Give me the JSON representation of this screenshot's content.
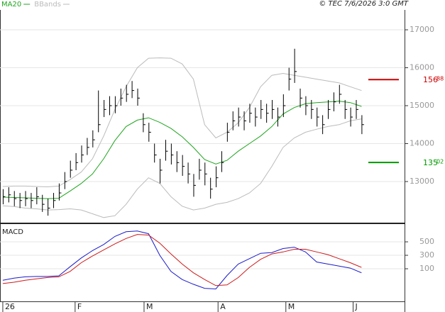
{
  "chart_data": [
    {
      "type": "ohlc",
      "source": "© TEC 7/6/2026 3:0 GMT",
      "grid": true,
      "color": "#000000",
      "xlim": [
        -0.5,
        71.8
      ],
      "ylim": [
        11935,
        17505
      ],
      "xticks": [
        {
          "value": 0,
          "label": "26"
        },
        {
          "value": 12.9,
          "label": "F"
        },
        {
          "value": 25.2,
          "label": "M"
        },
        {
          "value": 38.4,
          "label": "A"
        },
        {
          "value": 50.5,
          "label": "M"
        },
        {
          "value": 62.5,
          "label": "J"
        }
      ],
      "yticks": [
        13000,
        14000,
        15000,
        16000,
        17000
      ],
      "x": [
        0,
        1,
        2,
        3,
        4,
        5,
        6,
        7,
        8,
        9,
        10,
        11,
        12,
        13,
        14,
        15,
        16,
        17,
        18,
        19,
        20,
        21,
        22,
        23,
        24,
        25,
        26,
        27,
        28,
        29,
        30,
        31,
        32,
        33,
        34,
        35,
        36,
        37,
        38,
        39,
        40,
        41,
        42,
        43,
        44,
        45,
        46,
        47,
        48,
        49,
        50,
        51,
        52,
        53,
        54,
        55,
        56,
        57,
        58,
        59,
        60,
        61,
        62,
        63,
        64
      ],
      "high": [
        12800,
        12850,
        12750,
        12700,
        12750,
        12700,
        12850,
        12650,
        12550,
        12700,
        12950,
        13250,
        13550,
        13750,
        13950,
        14150,
        14350,
        15400,
        15150,
        15250,
        15250,
        15450,
        15550,
        15650,
        15450,
        14800,
        14550,
        14000,
        13600,
        14100,
        14000,
        13800,
        13700,
        13500,
        13200,
        13600,
        13500,
        13100,
        13400,
        13800,
        14550,
        14850,
        14950,
        14850,
        15050,
        14950,
        15150,
        15050,
        15150,
        14950,
        15300,
        16000,
        16500,
        15450,
        15250,
        15150,
        14950,
        14750,
        15150,
        15350,
        15550,
        15150,
        14950,
        15150,
        14750
      ],
      "low": [
        12400,
        12450,
        12350,
        12300,
        12350,
        12300,
        12400,
        12200,
        12100,
        12300,
        12500,
        12800,
        13100,
        13300,
        13500,
        13700,
        13900,
        14300,
        14700,
        14750,
        14800,
        15000,
        15100,
        15200,
        15000,
        14300,
        14050,
        13500,
        12950,
        13550,
        13450,
        13250,
        13150,
        12950,
        12600,
        13050,
        12900,
        12550,
        12850,
        13250,
        14050,
        14350,
        14450,
        14350,
        14550,
        14450,
        14650,
        14550,
        14650,
        14450,
        14700,
        15400,
        15600,
        14950,
        14750,
        14650,
        14450,
        14250,
        14650,
        14850,
        15050,
        14650,
        14450,
        14650,
        14250
      ],
      "close": [
        12600,
        12650,
        12550,
        12500,
        12550,
        12500,
        12600,
        12400,
        12300,
        12500,
        12700,
        13000,
        13300,
        13500,
        13700,
        13900,
        14100,
        14500,
        14900,
        15000,
        15000,
        15200,
        15300,
        15400,
        15200,
        14500,
        14300,
        13700,
        13300,
        13800,
        13700,
        13500,
        13400,
        13200,
        12900,
        13300,
        13200,
        12800,
        13100,
        13500,
        14300,
        14600,
        14700,
        14600,
        14800,
        14700,
        14900,
        14800,
        14900,
        14700,
        15000,
        15700,
        15900,
        15200,
        15000,
        14900,
        14700,
        14500,
        14900,
        15100,
        15300,
        14900,
        14700,
        14900,
        14500
      ],
      "series": [
        {
          "name": "MA20",
          "color": "#1fa51f",
          "x": [
            0,
            2,
            4,
            6,
            8,
            10,
            12,
            14,
            16,
            18,
            20,
            22,
            24,
            26,
            28,
            30,
            32,
            34,
            36,
            38,
            40,
            42,
            44,
            46,
            48,
            50,
            52,
            54,
            56,
            58,
            60,
            62,
            64
          ],
          "values": [
            12590,
            12580,
            12570,
            12560,
            12550,
            12560,
            12750,
            12950,
            13200,
            13600,
            14080,
            14450,
            14620,
            14680,
            14560,
            14400,
            14180,
            13900,
            13580,
            13460,
            13560,
            13800,
            14000,
            14200,
            14450,
            14780,
            14950,
            15050,
            15080,
            15100,
            15120,
            15080,
            14980
          ]
        },
        {
          "name": "BBands",
          "color": "#bbbbbb",
          "x": [
            0,
            2,
            4,
            6,
            8,
            10,
            12,
            14,
            16,
            18,
            20,
            22,
            24,
            26,
            28,
            30,
            32,
            34,
            36,
            38,
            40,
            42,
            44,
            46,
            48,
            50,
            52,
            54,
            56,
            58,
            60,
            62,
            64
          ],
          "upper": [
            12870,
            12880,
            12880,
            12870,
            12860,
            12880,
            13050,
            13250,
            13600,
            14200,
            14900,
            15500,
            16000,
            16250,
            16260,
            16250,
            16100,
            15700,
            14500,
            14150,
            14300,
            14550,
            14950,
            15500,
            15800,
            15850,
            15800,
            15750,
            15700,
            15650,
            15600,
            15500,
            15400
          ],
          "lower": [
            12360,
            12340,
            12300,
            12280,
            12250,
            12260,
            12280,
            12250,
            12150,
            12050,
            12100,
            12400,
            12800,
            13100,
            12950,
            12600,
            12350,
            12250,
            12300,
            12400,
            12450,
            12550,
            12700,
            12950,
            13400,
            13900,
            14150,
            14300,
            14380,
            14450,
            14500,
            14600,
            14650
          ]
        }
      ],
      "levels": [
        {
          "value": 15688,
          "label": "156",
          "fraction": "88",
          "color": "#cc0000"
        },
        {
          "value": 13502,
          "label": "135",
          "fraction": "02",
          "color": "#009900"
        }
      ]
    },
    {
      "type": "line",
      "title": "MACD",
      "xlim": [
        -0.5,
        71.8
      ],
      "ylim": [
        -384,
        753
      ],
      "yticks": [
        100,
        300,
        500
      ],
      "x": [
        0,
        2,
        4,
        6,
        8,
        10,
        12,
        14,
        16,
        18,
        20,
        22,
        24,
        26,
        28,
        30,
        32,
        34,
        36,
        38,
        40,
        42,
        44,
        46,
        48,
        50,
        52,
        54,
        56,
        58,
        60,
        62,
        64
      ],
      "series": [
        {
          "color": "#1a1acc",
          "values": [
            -70,
            -40,
            -20,
            -15,
            -15,
            -5,
            130,
            260,
            370,
            460,
            580,
            650,
            660,
            620,
            300,
            60,
            -60,
            -130,
            -190,
            -200,
            0,
            170,
            250,
            330,
            340,
            400,
            420,
            350,
            200,
            170,
            140,
            110,
            40
          ]
        },
        {
          "color": "#cc1a1a",
          "values": [
            -120,
            -100,
            -70,
            -50,
            -30,
            -20,
            60,
            190,
            290,
            380,
            470,
            550,
            610,
            600,
            480,
            320,
            170,
            40,
            -60,
            -150,
            -140,
            -30,
            120,
            240,
            320,
            350,
            390,
            390,
            350,
            310,
            250,
            190,
            120
          ]
        }
      ]
    }
  ]
}
